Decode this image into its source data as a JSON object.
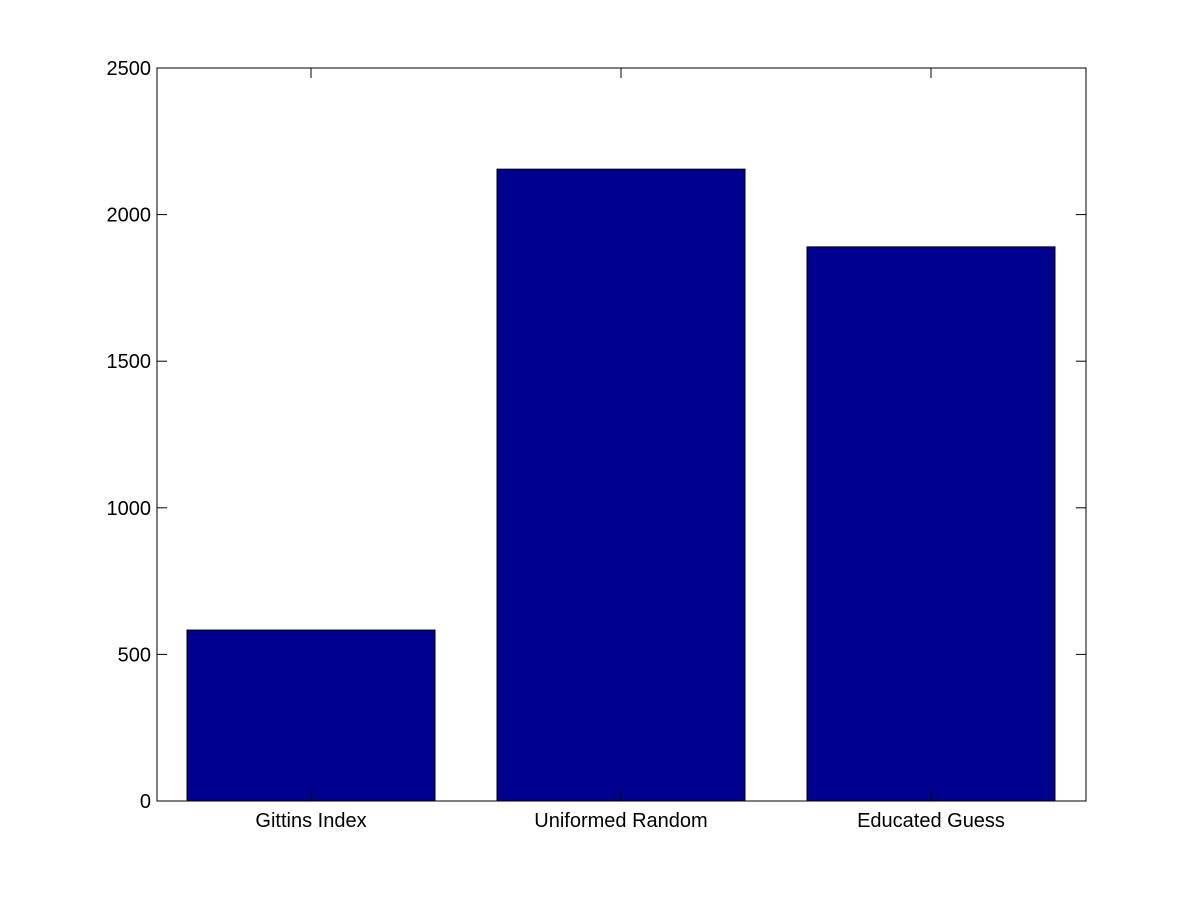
{
  "chart_data": {
    "type": "bar",
    "categories": [
      "Gittins Index",
      "Uniformed Random",
      "Educated Guess"
    ],
    "values": [
      583,
      2155,
      1890
    ],
    "ylim": [
      0,
      2500
    ],
    "yticks": [
      0,
      500,
      1000,
      1500,
      2000,
      2500
    ],
    "grid": false,
    "legend": "none",
    "title": "",
    "xlabel": "",
    "ylabel": "",
    "colors": {
      "bar": "#00008f",
      "bar_edge": "#000000",
      "axes": "#000000",
      "background": "#ffffff"
    }
  }
}
